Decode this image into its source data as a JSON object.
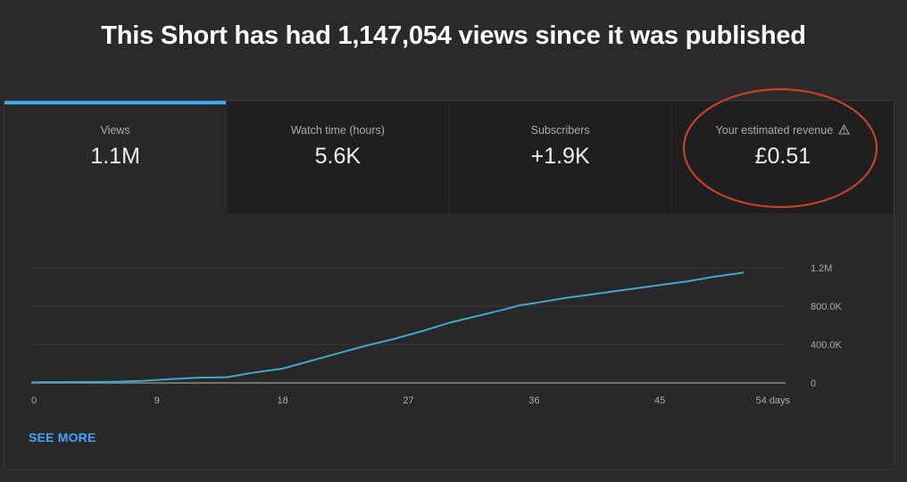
{
  "headline": "This Short has had 1,147,054 views since it was published",
  "tabs": [
    {
      "label": "Views",
      "value": "1.1M",
      "active": true
    },
    {
      "label": "Watch time (hours)",
      "value": "5.6K",
      "active": false
    },
    {
      "label": "Subscribers",
      "value": "+1.9K",
      "active": false
    },
    {
      "label": "Your estimated revenue",
      "value": "£0.51",
      "active": false,
      "icon": "warning-icon"
    }
  ],
  "colors": {
    "accent": "#3ea6ff",
    "line": "#41a9c9",
    "annotation": "#c5402b"
  },
  "see_more": "SEE MORE",
  "chart_data": {
    "type": "line",
    "title": "",
    "xlabel": "",
    "ylabel": "",
    "x_ticks": [
      "0",
      "9",
      "18",
      "27",
      "36",
      "45",
      "54 days"
    ],
    "y_ticks": [
      "0",
      "400.0K",
      "800.0K",
      "1.2M"
    ],
    "xlim": [
      0,
      54
    ],
    "ylim": [
      0,
      1200000
    ],
    "grid": true,
    "series": [
      {
        "x": [
          0,
          1,
          2,
          4,
          6,
          8,
          10,
          12,
          14,
          16,
          18,
          20,
          22,
          24,
          26,
          28,
          30,
          32,
          34,
          35,
          36,
          38,
          40,
          42,
          44,
          46,
          47,
          49,
          51
        ],
        "values": [
          5000,
          8000,
          8000,
          9000,
          12000,
          22000,
          40000,
          55000,
          60000,
          110000,
          150000,
          230000,
          310000,
          390000,
          460000,
          540000,
          630000,
          700000,
          770000,
          810000,
          830000,
          880000,
          920000,
          960000,
          1000000,
          1040000,
          1060000,
          1110000,
          1150000
        ]
      }
    ]
  }
}
